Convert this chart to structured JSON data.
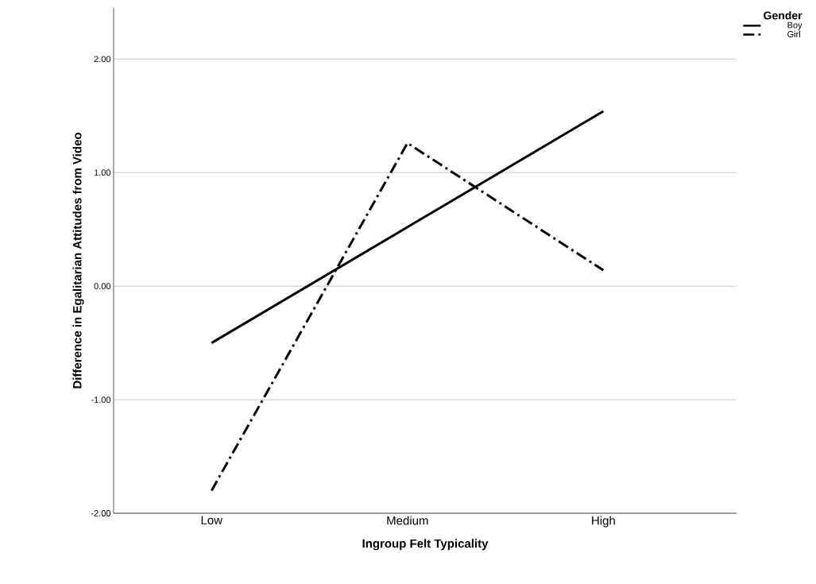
{
  "chart_data": {
    "type": "line",
    "xlabel": "Ingroup Felt Typicality",
    "ylabel": "Difference in Egalitarian Attitudes from Video",
    "legend_title": "Gender",
    "categories": [
      "Low",
      "Medium",
      "High"
    ],
    "series": [
      {
        "name": "Boy",
        "color": "#000000",
        "line_style": "solid",
        "values": [
          -0.5,
          0.52,
          1.54
        ]
      },
      {
        "name": "Girl",
        "color": "#000000",
        "line_style": "dashdot",
        "values": [
          -1.8,
          1.26,
          0.14
        ]
      }
    ],
    "ylim": [
      -2,
      2.45
    ],
    "yticks": [
      {
        "value": -2,
        "label": "-2.00"
      },
      {
        "value": -1,
        "label": "-1.00"
      },
      {
        "value": 0,
        "label": "0.00"
      },
      {
        "value": 1,
        "label": "1.00"
      },
      {
        "value": 2,
        "label": "2.00"
      }
    ],
    "grid": "y",
    "legend": "top right",
    "marker": "none"
  }
}
